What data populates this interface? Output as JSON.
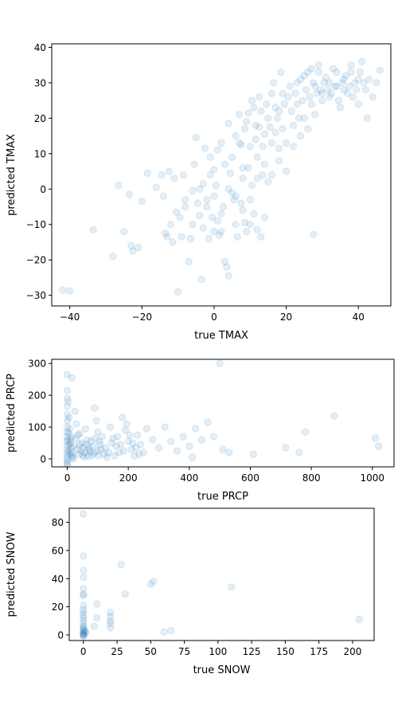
{
  "chart_data": [
    {
      "type": "scatter",
      "xlabel": "true TMAX",
      "ylabel": "predicted TMAX",
      "xlim": [
        -45,
        49
      ],
      "ylim": [
        -33,
        41
      ],
      "xticks": [
        -40,
        -20,
        0,
        20,
        40
      ],
      "yticks": [
        -30,
        -20,
        -10,
        0,
        10,
        20,
        30,
        40
      ],
      "color": "#1f77b4",
      "alpha": 0.12,
      "points": [
        [
          -42,
          -28.5
        ],
        [
          -40,
          -28.8
        ],
        [
          -33.5,
          -11.5
        ],
        [
          -28,
          -19
        ],
        [
          -26.5,
          1
        ],
        [
          -25,
          -12
        ],
        [
          -23.5,
          -1.5
        ],
        [
          -23,
          -16
        ],
        [
          -22.5,
          -17.5
        ],
        [
          -21,
          -16.5
        ],
        [
          -20,
          -3.5
        ],
        [
          -18.5,
          4.5
        ],
        [
          -16,
          0.5
        ],
        [
          -14.5,
          4
        ],
        [
          -14,
          -2
        ],
        [
          -13.5,
          -12.5
        ],
        [
          -13,
          -13.5
        ],
        [
          -12.5,
          5
        ],
        [
          -12,
          -10
        ],
        [
          -11.5,
          -15
        ],
        [
          -11,
          3
        ],
        [
          -10.5,
          -6.5
        ],
        [
          -10,
          -29
        ],
        [
          -9.5,
          -8
        ],
        [
          -9,
          -13.5
        ],
        [
          -8.5,
          4
        ],
        [
          -8,
          -3
        ],
        [
          -7,
          -20.5
        ],
        [
          -6.5,
          -14
        ],
        [
          -6,
          -0.5
        ],
        [
          -5.5,
          7
        ],
        [
          -5,
          14.5
        ],
        [
          -4.5,
          -4
        ],
        [
          -4,
          -7.5
        ],
        [
          -3.5,
          -25.5
        ],
        [
          -3,
          -11
        ],
        [
          -2.5,
          11.5
        ],
        [
          -2,
          -3
        ],
        [
          -1.5,
          -14
        ],
        [
          -1,
          4
        ],
        [
          -0.5,
          -8
        ],
        [
          0,
          -2
        ],
        [
          0.5,
          1
        ],
        [
          1,
          -9
        ],
        [
          1.5,
          -13
        ],
        [
          2,
          -12
        ],
        [
          2.5,
          -5
        ],
        [
          3,
          -20.5
        ],
        [
          3.5,
          -22
        ],
        [
          4,
          -24.5
        ],
        [
          4.5,
          4.5
        ],
        [
          5,
          -1
        ],
        [
          5.5,
          -3
        ],
        [
          6,
          -10
        ],
        [
          6.5,
          -13.5
        ],
        [
          7,
          13
        ],
        [
          7.5,
          -4
        ],
        [
          8,
          3
        ],
        [
          8.5,
          -9.5
        ],
        [
          9,
          -12
        ],
        [
          9.5,
          6
        ],
        [
          10,
          -10
        ],
        [
          10.5,
          1
        ],
        [
          11,
          -7
        ],
        [
          11.5,
          14
        ],
        [
          12,
          -11.5
        ],
        [
          12.5,
          17.5
        ],
        [
          13,
          -13.5
        ],
        [
          13.5,
          4
        ],
        [
          14,
          -8
        ],
        [
          15,
          2
        ],
        [
          16,
          13
        ],
        [
          17,
          23
        ],
        [
          18,
          11.5
        ],
        [
          19,
          17
        ],
        [
          27.5,
          -12.8
        ],
        [
          -3,
          1.5
        ],
        [
          -1,
          9
        ],
        [
          0,
          5.5
        ],
        [
          1,
          11
        ],
        [
          2,
          13
        ],
        [
          3,
          7
        ],
        [
          4,
          18.5
        ],
        [
          5,
          9
        ],
        [
          6,
          15
        ],
        [
          7,
          21
        ],
        [
          8,
          6
        ],
        [
          9,
          19
        ],
        [
          10,
          12
        ],
        [
          11,
          23
        ],
        [
          12,
          9
        ],
        [
          13,
          22
        ],
        [
          14,
          15.5
        ],
        [
          15,
          20
        ],
        [
          16,
          27
        ],
        [
          17,
          16
        ],
        [
          18,
          22
        ],
        [
          19,
          27
        ],
        [
          20,
          13
        ],
        [
          21,
          29
        ],
        [
          22,
          18
        ],
        [
          23,
          24
        ],
        [
          24,
          31
        ],
        [
          25,
          20
        ],
        [
          26,
          33
        ],
        [
          27,
          24
        ],
        [
          28,
          29
        ],
        [
          29,
          35
        ],
        [
          30,
          27
        ],
        [
          31,
          31.5
        ],
        [
          32,
          26
        ],
        [
          33,
          34
        ],
        [
          34,
          29
        ],
        [
          35,
          23
        ],
        [
          36,
          31
        ],
        [
          37,
          27
        ],
        [
          38,
          33
        ],
        [
          39,
          30
        ],
        [
          40,
          24
        ],
        [
          41,
          36
        ],
        [
          42,
          28
        ],
        [
          43,
          31
        ],
        [
          44,
          26
        ],
        [
          45,
          30
        ],
        [
          46,
          33.5
        ],
        [
          -8,
          -5
        ],
        [
          -6,
          -10
        ],
        [
          -4,
          0
        ],
        [
          -2,
          -5
        ],
        [
          0,
          -12
        ],
        [
          2,
          -7
        ],
        [
          4,
          0
        ],
        [
          6,
          -2
        ],
        [
          8,
          -6
        ],
        [
          10,
          -3
        ],
        [
          12,
          3
        ],
        [
          14,
          7
        ],
        [
          16,
          4
        ],
        [
          18,
          8
        ],
        [
          20,
          5
        ],
        [
          22,
          12
        ],
        [
          24,
          15
        ],
        [
          26,
          17
        ],
        [
          28,
          21
        ],
        [
          30,
          25
        ],
        [
          32,
          30
        ],
        [
          34,
          33
        ],
        [
          36,
          28
        ],
        [
          38,
          35
        ],
        [
          40,
          31
        ],
        [
          7.5,
          12.5
        ],
        [
          8.5,
          17
        ],
        [
          9.5,
          21.5
        ],
        [
          10.5,
          25
        ],
        [
          11.5,
          18
        ],
        [
          12.5,
          26
        ],
        [
          13.5,
          12
        ],
        [
          14.5,
          24
        ],
        [
          15.5,
          17.5
        ],
        [
          16.5,
          30
        ],
        [
          17.5,
          20
        ],
        [
          18.5,
          33
        ],
        [
          19.5,
          24
        ],
        [
          20.5,
          26
        ],
        [
          21.5,
          22
        ],
        [
          22.5,
          27
        ],
        [
          23.5,
          20
        ],
        [
          24.5,
          25
        ],
        [
          25.5,
          28
        ],
        [
          26.5,
          26
        ],
        [
          27.5,
          30
        ],
        [
          28.5,
          27
        ],
        [
          29.5,
          28
        ],
        [
          30.5,
          30
        ],
        [
          31.5,
          28
        ],
        [
          32.5,
          27
        ],
        [
          33.5,
          29
        ],
        [
          34.5,
          25
        ],
        [
          35.5,
          30
        ],
        [
          36.5,
          32
        ],
        [
          37.5,
          29
        ],
        [
          38.5,
          26
        ],
        [
          39.5,
          28
        ],
        [
          40.5,
          33
        ],
        [
          41.5,
          30
        ],
        [
          42.5,
          20
        ],
        [
          23,
          30
        ],
        [
          25,
          32
        ],
        [
          27,
          34
        ],
        [
          29,
          33
        ]
      ]
    },
    {
      "type": "scatter",
      "xlabel": "true PRCP",
      "ylabel": "predicted PRCP",
      "xlim": [
        -51,
        1071
      ],
      "ylim": [
        -25,
        313
      ],
      "xticks": [
        0,
        200,
        400,
        600,
        800,
        1000
      ],
      "yticks": [
        0,
        100,
        200,
        300
      ],
      "color": "#1f77b4",
      "alpha": 0.12,
      "points": [
        [
          0,
          265
        ],
        [
          0,
          215
        ],
        [
          0,
          190
        ],
        [
          0,
          165
        ],
        [
          0,
          140
        ],
        [
          0,
          120
        ],
        [
          0,
          100
        ],
        [
          0,
          85
        ],
        [
          0,
          70
        ],
        [
          0,
          55
        ],
        [
          0,
          40
        ],
        [
          0,
          28
        ],
        [
          0,
          18
        ],
        [
          0,
          8
        ],
        [
          0,
          0
        ],
        [
          0,
          -8
        ],
        [
          0,
          -15
        ],
        [
          0,
          -20
        ],
        [
          3,
          180
        ],
        [
          5,
          130
        ],
        [
          8,
          95
        ],
        [
          10,
          60
        ],
        [
          12,
          35
        ],
        [
          15,
          20
        ],
        [
          18,
          10
        ],
        [
          20,
          0
        ],
        [
          25,
          150
        ],
        [
          30,
          110
        ],
        [
          35,
          75
        ],
        [
          40,
          45
        ],
        [
          45,
          25
        ],
        [
          50,
          12
        ],
        [
          55,
          5
        ],
        [
          60,
          95
        ],
        [
          65,
          60
        ],
        [
          70,
          35
        ],
        [
          75,
          22
        ],
        [
          80,
          10
        ],
        [
          90,
          160
        ],
        [
          95,
          120
        ],
        [
          100,
          85
        ],
        [
          105,
          55
        ],
        [
          110,
          30
        ],
        [
          120,
          15
        ],
        [
          130,
          5
        ],
        [
          140,
          100
        ],
        [
          150,
          65
        ],
        [
          160,
          40
        ],
        [
          170,
          20
        ],
        [
          180,
          130
        ],
        [
          190,
          90
        ],
        [
          200,
          55
        ],
        [
          210,
          30
        ],
        [
          220,
          10
        ],
        [
          230,
          75
        ],
        [
          240,
          45
        ],
        [
          250,
          20
        ],
        [
          260,
          95
        ],
        [
          280,
          60
        ],
        [
          300,
          35
        ],
        [
          320,
          100
        ],
        [
          340,
          55
        ],
        [
          360,
          25
        ],
        [
          380,
          70
        ],
        [
          400,
          40
        ],
        [
          410,
          5
        ],
        [
          420,
          95
        ],
        [
          440,
          60
        ],
        [
          460,
          115
        ],
        [
          480,
          70
        ],
        [
          500,
          300
        ],
        [
          510,
          30
        ],
        [
          530,
          20
        ],
        [
          610,
          15
        ],
        [
          715,
          35
        ],
        [
          760,
          20
        ],
        [
          780,
          85
        ],
        [
          875,
          135
        ],
        [
          1010,
          65
        ],
        [
          1020,
          40
        ],
        [
          15,
          255
        ],
        [
          2,
          60
        ],
        [
          4,
          80
        ],
        [
          6,
          45
        ],
        [
          7,
          25
        ],
        [
          9,
          15
        ],
        [
          11,
          50
        ],
        [
          13,
          70
        ],
        [
          16,
          5
        ],
        [
          22,
          40
        ],
        [
          28,
          65
        ],
        [
          33,
          30
        ],
        [
          38,
          15
        ],
        [
          42,
          80
        ],
        [
          48,
          50
        ],
        [
          52,
          35
        ],
        [
          58,
          20
        ],
        [
          62,
          45
        ],
        [
          68,
          8
        ],
        [
          72,
          28
        ],
        [
          78,
          55
        ],
        [
          85,
          40
        ],
        [
          88,
          18
        ],
        [
          92,
          65
        ],
        [
          98,
          25
        ],
        [
          102,
          10
        ],
        [
          108,
          45
        ],
        [
          115,
          70
        ],
        [
          125,
          35
        ],
        [
          135,
          20
        ],
        [
          145,
          50
        ],
        [
          155,
          10
        ],
        [
          165,
          70
        ],
        [
          175,
          45
        ],
        [
          185,
          25
        ],
        [
          195,
          110
        ],
        [
          205,
          75
        ],
        [
          215,
          50
        ],
        [
          225,
          35
        ],
        [
          235,
          15
        ]
      ]
    },
    {
      "type": "scatter",
      "xlabel": "true SNOW",
      "ylabel": "predicted SNOW",
      "xlim": [
        -10.5,
        216
      ],
      "ylim": [
        -4,
        90
      ],
      "xticks": [
        0,
        25,
        50,
        75,
        100,
        125,
        150,
        175,
        200
      ],
      "yticks": [
        0,
        20,
        40,
        60,
        80
      ],
      "color": "#1f77b4",
      "alpha": 0.12,
      "points": [
        [
          0,
          86
        ],
        [
          0,
          56
        ],
        [
          0,
          46
        ],
        [
          0,
          41
        ],
        [
          0,
          33
        ],
        [
          0,
          29
        ],
        [
          0,
          28
        ],
        [
          0,
          21
        ],
        [
          0,
          18
        ],
        [
          0,
          16
        ],
        [
          0,
          14
        ],
        [
          0,
          12
        ],
        [
          0,
          10
        ],
        [
          0,
          8
        ],
        [
          0,
          6
        ],
        [
          0,
          5
        ],
        [
          0,
          4
        ],
        [
          0,
          3
        ],
        [
          0,
          2
        ],
        [
          0,
          1
        ],
        [
          0,
          0.5
        ],
        [
          0,
          0
        ],
        [
          0,
          -0.5
        ],
        [
          0,
          -1
        ],
        [
          1,
          3
        ],
        [
          1,
          1
        ],
        [
          2,
          2
        ],
        [
          8,
          6
        ],
        [
          10,
          22
        ],
        [
          10,
          12
        ],
        [
          20,
          16
        ],
        [
          20,
          13
        ],
        [
          20,
          10
        ],
        [
          20,
          8
        ],
        [
          20,
          5
        ],
        [
          28,
          50
        ],
        [
          31,
          29
        ],
        [
          50,
          36
        ],
        [
          52,
          38
        ],
        [
          60,
          2
        ],
        [
          65,
          3
        ],
        [
          110,
          34
        ],
        [
          205,
          11
        ]
      ]
    }
  ]
}
